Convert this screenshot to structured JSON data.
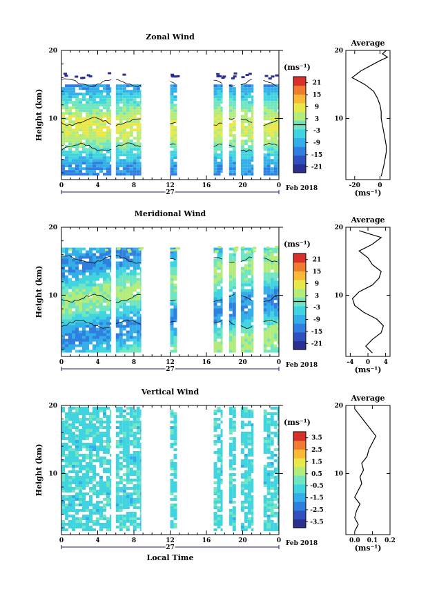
{
  "colors": {
    "colormap": [
      "#2b2f8f",
      "#3050c0",
      "#2f7fe0",
      "#34aee8",
      "#3fd4e0",
      "#6fe6c0",
      "#b4ec7c",
      "#e8e84a",
      "#f8b838",
      "#f07a30",
      "#d8302a"
    ],
    "line": "#000000",
    "axis_navy": "#1a1a6e",
    "background": "#ffffff"
  },
  "chart_data": [
    {
      "type": "heatmap",
      "title": "Zonal Wind",
      "ylabel": "Height (km)",
      "ylim": [
        1,
        20
      ],
      "y_ticks": [
        "20",
        "10"
      ],
      "x_ticks": [
        "0",
        "4",
        "8",
        "12",
        "16",
        "20",
        "0"
      ],
      "xlim": [
        0,
        24
      ],
      "date_label": "27",
      "date_suffix": "Feb 2018",
      "data_columns_hours": [
        [
          0,
          5.5
        ],
        [
          6,
          8.8
        ],
        [
          12.0,
          12.8
        ],
        [
          16.8,
          17.8
        ],
        [
          18.5,
          19.3
        ],
        [
          19.8,
          21.2
        ],
        [
          22.3,
          24
        ]
      ],
      "colorbar": {
        "unit": "(ms⁻¹)",
        "range": [
          -24,
          24
        ],
        "ticks": [
          "21",
          "15",
          "9",
          "3",
          "-3",
          "-9",
          "-15",
          "-21"
        ],
        "zero_line": 3
      },
      "average_profile": {
        "title": "Average",
        "xlabel": "(ms⁻¹)",
        "x_ticks": [
          "-20",
          "0"
        ],
        "xlim": [
          -27,
          8
        ],
        "y_ticks": [
          "20",
          "10"
        ],
        "ylim": [
          1,
          20
        ],
        "height_km": [
          1.5,
          3,
          4,
          5,
          6,
          7,
          8,
          9,
          10,
          11,
          12,
          13,
          14,
          15,
          16,
          17,
          18,
          18.5,
          19,
          19.5,
          20
        ],
        "value_ms": [
          1,
          3,
          4,
          5,
          5,
          4,
          3,
          2,
          1,
          1,
          0,
          -2,
          -5,
          -12,
          -22,
          -15,
          -5,
          0,
          6,
          2,
          5
        ]
      }
    },
    {
      "type": "heatmap",
      "title": "Meridional Wind",
      "ylabel": "Height (km)",
      "ylim": [
        1,
        20
      ],
      "y_ticks": [
        "20",
        "10"
      ],
      "x_ticks": [
        "0",
        "4",
        "8",
        "12",
        "16",
        "20",
        "0"
      ],
      "xlim": [
        0,
        24
      ],
      "date_label": "27",
      "date_suffix": "Feb 2018",
      "data_columns_hours": [
        [
          0,
          5.5
        ],
        [
          6,
          8.8
        ],
        [
          12.0,
          12.8
        ],
        [
          16.8,
          17.8
        ],
        [
          18.5,
          19.3
        ],
        [
          19.8,
          21.2
        ],
        [
          22.3,
          24
        ]
      ],
      "colorbar": {
        "unit": "(ms⁻¹)",
        "range": [
          -24,
          24
        ],
        "ticks": [
          "21",
          "15",
          "9",
          "3",
          "-3",
          "-9",
          "-15",
          "-21"
        ],
        "zero_line": 3
      },
      "average_profile": {
        "title": "Average",
        "xlabel": "(ms⁻¹)",
        "x_ticks": [
          "-4",
          "0",
          "4"
        ],
        "xlim": [
          -5,
          5
        ],
        "y_ticks": [
          "20",
          "10"
        ],
        "ylim": [
          1,
          20
        ],
        "height_km": [
          1.5,
          2.5,
          3.5,
          4.5,
          5.5,
          6.5,
          7.5,
          8.5,
          9.5,
          10.5,
          11.5,
          12.5,
          13.5,
          14.5,
          15.5,
          16.5,
          17.5,
          18.5,
          19.5
        ],
        "value_ms": [
          1,
          -0.5,
          1,
          3,
          3.5,
          2,
          -1,
          -3,
          -3.5,
          -2,
          1,
          2.5,
          3,
          1,
          0,
          -2,
          1,
          3,
          -2
        ]
      }
    },
    {
      "type": "heatmap",
      "title": "Vertical Wind",
      "ylabel": "Height (km)",
      "xlabel": "Local Time",
      "ylim": [
        1,
        20
      ],
      "y_ticks": [
        "20",
        "10"
      ],
      "x_ticks": [
        "0",
        "4",
        "8",
        "12",
        "16",
        "20",
        "0"
      ],
      "xlim": [
        0,
        24
      ],
      "date_label": "27",
      "date_suffix": "Feb 2018",
      "data_columns_hours": [
        [
          0,
          5.5
        ],
        [
          6,
          8.8
        ],
        [
          12.0,
          12.8
        ],
        [
          16.8,
          17.8
        ],
        [
          18.5,
          19.3
        ],
        [
          19.8,
          21.2
        ],
        [
          22.3,
          24
        ]
      ],
      "colorbar": {
        "unit": "(ms⁻¹)",
        "range": [
          -4,
          4
        ],
        "ticks": [
          "3.5",
          "2.5",
          "1.5",
          "0.5",
          "-0.5",
          "-1.5",
          "-2.5",
          "-3.5"
        ],
        "zero_line": 0
      },
      "average_profile": {
        "title": "Average",
        "xlabel": "(ms⁻¹)",
        "x_ticks": [
          "0.0",
          "0.1",
          "0.2"
        ],
        "xlim": [
          -0.05,
          0.2
        ],
        "y_ticks": [
          "20",
          "10"
        ],
        "ylim": [
          1,
          20
        ],
        "height_km": [
          1.5,
          2.5,
          3.5,
          4.5,
          5.5,
          6.5,
          7.5,
          8.5,
          9.5,
          10.5,
          11.5,
          12.5,
          13.5,
          14.5,
          15.5,
          16.5,
          17.5,
          18.5,
          19.5
        ],
        "value_ms": [
          0.0,
          0.02,
          0.0,
          0.01,
          0.03,
          0.0,
          0.02,
          0.04,
          0.03,
          0.05,
          0.04,
          0.07,
          0.08,
          0.1,
          0.12,
          0.09,
          0.06,
          0.03,
          0.0
        ]
      }
    }
  ]
}
